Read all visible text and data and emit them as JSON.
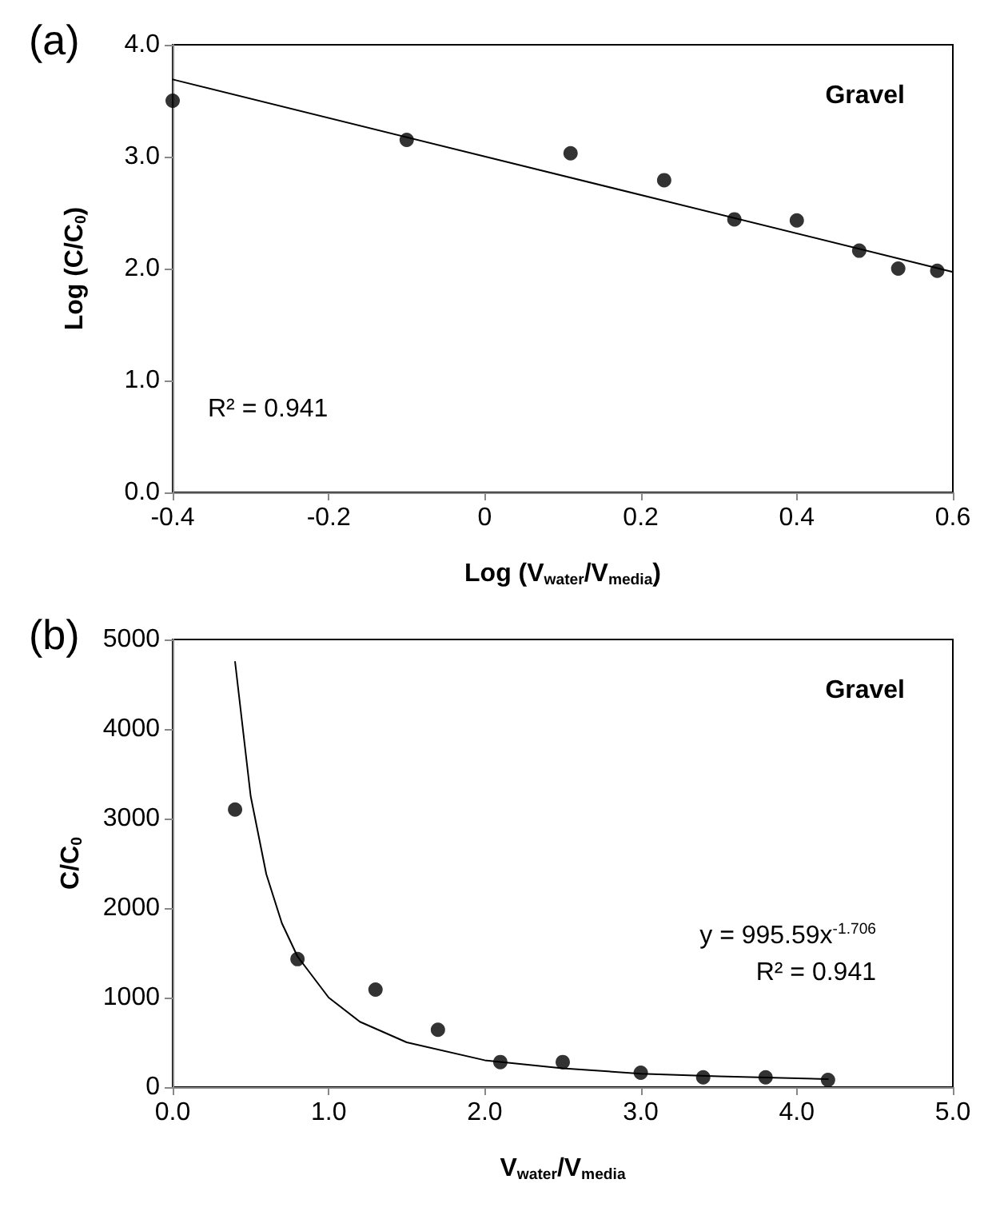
{
  "chart_data": [
    {
      "type": "scatter",
      "xlabel": "Log (V$_{water}$/V$_{media}$)",
      "ylabel": "Log (C/C$_{0}$)",
      "annotations": [
        "(a)",
        "Gravel",
        "R² = 0.941"
      ],
      "xlim": [
        -0.4,
        0.6
      ],
      "xticks": [
        -0.4,
        -0.2,
        0,
        0.2,
        0.4,
        0.6
      ],
      "ylim": [
        0,
        4
      ],
      "yticks": [
        {
          "value": 0,
          "label": "0.0"
        },
        {
          "value": 1,
          "label": "1.0"
        },
        {
          "value": 2,
          "label": "2.0"
        },
        {
          "value": 3,
          "label": "3.0"
        },
        {
          "value": 4,
          "label": "4.0"
        }
      ],
      "grid": false,
      "marker": "circle",
      "series": [
        {
          "color": "#000000",
          "x": [
            -0.4,
            -0.1,
            0.11,
            0.23,
            0.32,
            0.4,
            0.48,
            0.53,
            0.58
          ],
          "values": [
            3.5,
            3.15,
            3.03,
            2.79,
            2.44,
            2.43,
            2.16,
            2.0,
            1.98
          ]
        },
        {
          "type": "line",
          "color": "#000000",
          "marker": "none",
          "line_style": "solid",
          "x": [
            -0.4,
            0.6
          ],
          "values": [
            3.69,
            1.97
          ]
        }
      ]
    },
    {
      "type": "scatter",
      "xlabel": "V$_{water}$/V$_{media}$",
      "ylabel": "C/C$_{0}$",
      "annotations": [
        "(b)",
        "Gravel",
        "y = 995.59x$^{-1.706}$",
        "R² = 0.941"
      ],
      "xlim": [
        0,
        5
      ],
      "xticks": [
        {
          "value": 0,
          "label": "0.0"
        },
        {
          "value": 1,
          "label": "1.0"
        },
        {
          "value": 2,
          "label": "2.0"
        },
        {
          "value": 3,
          "label": "3.0"
        },
        {
          "value": 4,
          "label": "4.0"
        },
        {
          "value": 5,
          "label": "5.0"
        }
      ],
      "ylim": [
        0,
        5000
      ],
      "yticks": [
        0,
        1000,
        2000,
        3000,
        4000,
        5000
      ],
      "grid": false,
      "marker": "circle",
      "series": [
        {
          "color": "#000000",
          "x": [
            0.4,
            0.8,
            1.3,
            1.7,
            2.1,
            2.5,
            3.0,
            3.4,
            3.8,
            4.2
          ],
          "values": [
            3100,
            1430,
            1090,
            640,
            280,
            280,
            160,
            110,
            110,
            80
          ]
        },
        {
          "type": "line",
          "color": "#000000",
          "marker": "none",
          "line_style": "solid",
          "x": [
            0.4,
            0.5,
            0.6,
            0.7,
            0.8,
            1.0,
            1.2,
            1.5,
            2.0,
            2.5,
            3.0,
            3.5,
            4.2
          ],
          "values": [
            4750,
            3250,
            2380,
            1830,
            1460,
            1000,
            730,
            500,
            300,
            210,
            150,
            120,
            90
          ]
        }
      ]
    }
  ]
}
